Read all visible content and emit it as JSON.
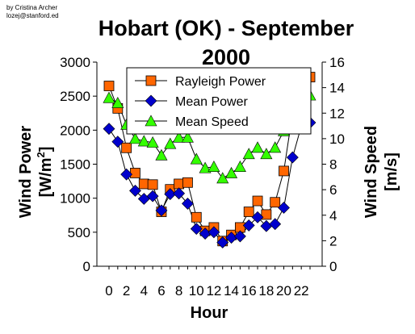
{
  "credit": [
    "by Cristina Archer",
    "lozej@stanford.ed"
  ],
  "chart_data": {
    "type": "line",
    "title_lines": [
      "Hobart (OK) - September",
      "2000"
    ],
    "xlabel": "Hour",
    "ylabel_left": "Wind Power [W/m²]",
    "ylabel_left_main": "Wind Power",
    "ylabel_left_unit": "[W/m",
    "ylabel_left_sup": "2",
    "ylabel_left_close": "]",
    "ylabel_right_main": "Wind Speed",
    "ylabel_right_unit": "[m/s]",
    "x": [
      0,
      1,
      2,
      3,
      4,
      5,
      6,
      7,
      8,
      9,
      10,
      11,
      12,
      13,
      14,
      15,
      16,
      17,
      18,
      19,
      20,
      21,
      22,
      23
    ],
    "x_ticks": [
      0,
      2,
      4,
      6,
      8,
      10,
      12,
      14,
      16,
      18,
      20,
      22
    ],
    "ylim_left": [
      0,
      3000
    ],
    "yticks_left": [
      0,
      500,
      1000,
      1500,
      2000,
      2500,
      3000
    ],
    "ylim_right": [
      0,
      16
    ],
    "yticks_right": [
      0,
      2,
      4,
      6,
      8,
      10,
      12,
      14,
      16
    ],
    "grid": false,
    "legend_position": "top-center",
    "series": [
      {
        "name": "Rayleigh Power",
        "axis": "left",
        "marker": "square",
        "color": "#ff6600",
        "values": [
          2650,
          2320,
          1740,
          1370,
          1210,
          1200,
          800,
          1130,
          1210,
          1230,
          720,
          520,
          570,
          370,
          460,
          570,
          800,
          960,
          760,
          940,
          1400,
          2250,
          2840,
          2780
        ]
      },
      {
        "name": "Mean Power",
        "axis": "left",
        "marker": "diamond",
        "color": "#0000cc",
        "values": [
          2020,
          1830,
          1350,
          1110,
          990,
          1030,
          820,
          1060,
          1070,
          920,
          550,
          480,
          500,
          350,
          420,
          440,
          600,
          720,
          590,
          620,
          860,
          1600,
          2060,
          2110
        ]
      },
      {
        "name": "Mean Speed",
        "axis": "right",
        "marker": "triangle",
        "color": "#33ff00",
        "values": [
          13.2,
          12.8,
          11.1,
          10.0,
          9.8,
          9.7,
          8.7,
          9.6,
          10.1,
          10.1,
          8.4,
          7.7,
          7.8,
          6.9,
          7.3,
          7.8,
          8.8,
          9.3,
          8.8,
          9.3,
          10.6,
          12.4,
          13.5,
          13.4
        ]
      }
    ]
  },
  "colors": {
    "background": "#ffffff",
    "axis": "#000000",
    "line": "#000000"
  }
}
